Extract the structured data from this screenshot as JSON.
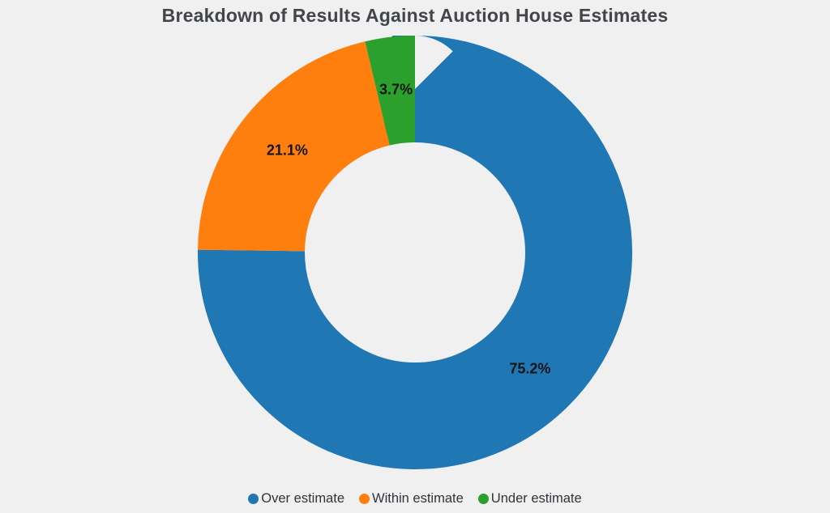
{
  "background_color": "#f0f0f0",
  "chart_data": {
    "type": "pie",
    "subtype": "donut",
    "title": "Breakdown of Results Against Auction House Estimates",
    "categories": [
      "Over estimate",
      "Within estimate",
      "Under estimate"
    ],
    "values": [
      75.2,
      21.1,
      3.7
    ],
    "slice_labels": [
      "75.2%",
      "21.1%",
      "3.7%"
    ],
    "colors": [
      "#1f77b4",
      "#ff7f0e",
      "#2ca02c"
    ],
    "start_angle_deg": 0,
    "direction": "clockwise",
    "inner_radius_ratio": 0.51,
    "legend_position": "bottom",
    "label_color": "#141414",
    "title_color": "#42464a"
  },
  "legend": {
    "items": [
      {
        "label": "Over estimate",
        "color": "#1f77b4"
      },
      {
        "label": "Within estimate",
        "color": "#ff7f0e"
      },
      {
        "label": "Under estimate",
        "color": "#2ca02c"
      }
    ]
  }
}
